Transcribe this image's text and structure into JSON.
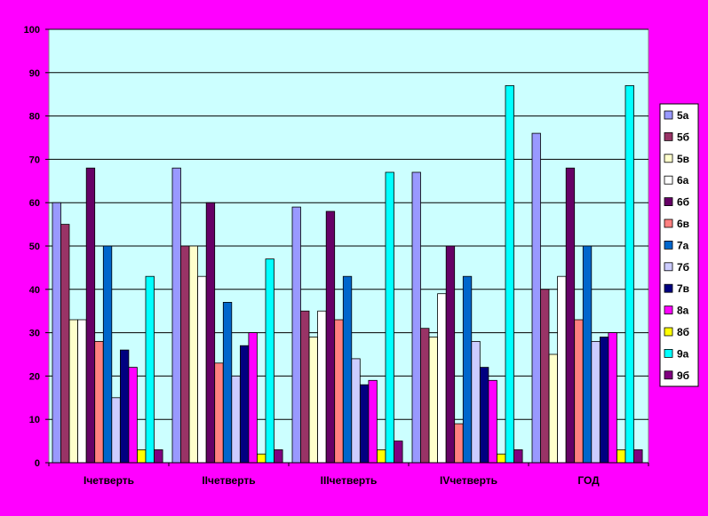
{
  "chart_data": {
    "type": "bar",
    "categories": [
      "Iчетверть",
      "IIчетверть",
      "IIIчетверть",
      "IVчетверть",
      "ГОД"
    ],
    "ylim": [
      0,
      100
    ],
    "yticks": [
      0,
      10,
      20,
      30,
      40,
      50,
      60,
      70,
      80,
      90,
      100
    ],
    "grid": true,
    "legend_position": "right",
    "plot_background": "#ccffff",
    "page_background": "#ff00ff",
    "series": [
      {
        "name": "5а",
        "color": "#9999ff",
        "values": [
          60,
          68,
          59,
          67,
          76
        ]
      },
      {
        "name": "5б",
        "color": "#993366",
        "values": [
          55,
          50,
          35,
          31,
          40
        ]
      },
      {
        "name": "5в",
        "color": "#ffffcc",
        "values": [
          33,
          50,
          29,
          29,
          25
        ]
      },
      {
        "name": "6а",
        "color": "#ffffff",
        "values": [
          33,
          43,
          35,
          39,
          43
        ]
      },
      {
        "name": "6б",
        "color": "#660066",
        "values": [
          68,
          60,
          58,
          50,
          68
        ]
      },
      {
        "name": "6в",
        "color": "#ff8080",
        "values": [
          28,
          23,
          33,
          9,
          33
        ]
      },
      {
        "name": "7а",
        "color": "#0066cc",
        "values": [
          50,
          37,
          43,
          43,
          50
        ]
      },
      {
        "name": "7б",
        "color": "#ccccff",
        "values": [
          15,
          20,
          24,
          28,
          28
        ]
      },
      {
        "name": "7в",
        "color": "#000080",
        "values": [
          26,
          27,
          18,
          22,
          29
        ]
      },
      {
        "name": "8а",
        "color": "#ff00ff",
        "values": [
          22,
          30,
          19,
          19,
          30
        ]
      },
      {
        "name": "8б",
        "color": "#ffff00",
        "values": [
          3,
          2,
          3,
          2,
          3
        ]
      },
      {
        "name": "9а",
        "color": "#00ffff",
        "values": [
          43,
          47,
          67,
          87,
          87
        ]
      },
      {
        "name": "9б",
        "color": "#800080",
        "values": [
          3,
          3,
          5,
          3,
          3
        ]
      }
    ]
  }
}
